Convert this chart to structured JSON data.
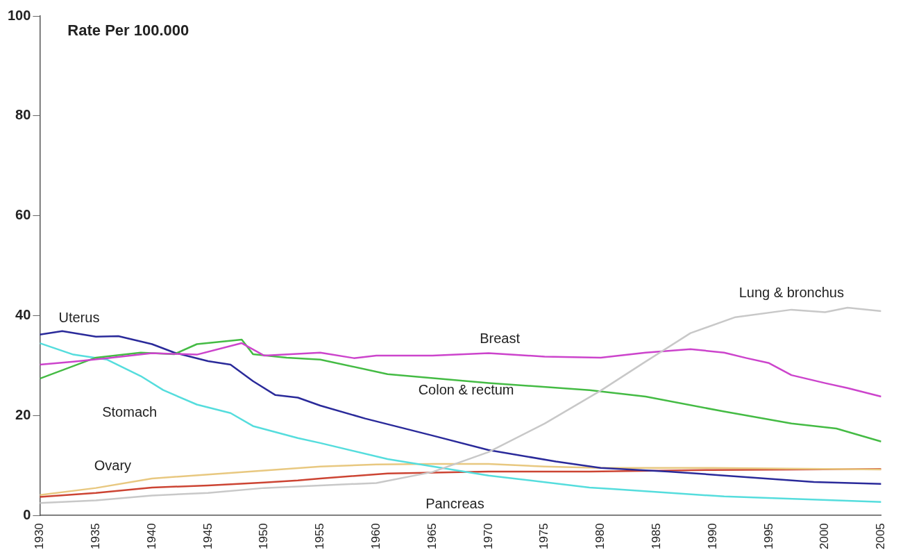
{
  "chart_data": {
    "type": "line",
    "ylabel": "Rate Per 100.000",
    "xlim": [
      1930,
      2005
    ],
    "xticks": [
      1930,
      1935,
      1940,
      1945,
      1950,
      1955,
      1960,
      1965,
      1970,
      1975,
      1980,
      1985,
      1990,
      1995,
      2000,
      2005
    ],
    "ylim": [
      0,
      100
    ],
    "yticks": [
      0,
      20,
      40,
      60,
      80,
      100
    ],
    "grid": false,
    "legend": false,
    "marker": "none",
    "line_style": "solid",
    "series": [
      {
        "name": "Lung & bronchus",
        "color": "#c8c8c8",
        "x": [
          1930,
          1935,
          1940,
          1945,
          1950,
          1955,
          1960,
          1965,
          1970,
          1975,
          1980,
          1984,
          1988,
          1992,
          1997,
          2000,
          2002,
          2005
        ],
        "values": [
          2.5,
          3,
          4,
          4.5,
          5.5,
          6,
          6.5,
          8.7,
          12.7,
          18.4,
          25,
          30.8,
          36.5,
          39.7,
          41.2,
          40.7,
          41.6,
          40.9
        ]
      },
      {
        "name": "Breast",
        "color": "#cc44cc",
        "x": [
          1930,
          1933,
          1936,
          1940,
          1944,
          1948,
          1950,
          1955,
          1958,
          1960,
          1965,
          1970,
          1975,
          1980,
          1984,
          1988,
          1991,
          1993,
          1995,
          1997,
          2000,
          2002,
          2005
        ],
        "values": [
          30.2,
          30.8,
          31.5,
          32.5,
          32.2,
          34.5,
          32,
          32.6,
          31.5,
          32,
          32,
          32.5,
          31.8,
          31.6,
          32.6,
          33.3,
          32.6,
          31.5,
          30.5,
          28.1,
          26.5,
          25.5,
          23.8
        ]
      },
      {
        "name": "Colon & rectum",
        "color": "#44bb44",
        "x": [
          1930,
          1935,
          1939,
          1942,
          1944,
          1948,
          1949,
          1952,
          1955,
          1961,
          1970,
          1979,
          1984,
          1991,
          1997,
          2001,
          2005
        ],
        "values": [
          27.4,
          31.6,
          32.6,
          32.3,
          34.3,
          35.2,
          32.3,
          31.6,
          31.2,
          28.3,
          26.5,
          25.1,
          23.8,
          20.8,
          18.4,
          17.4,
          14.8
        ]
      },
      {
        "name": "Uterus",
        "color": "#2a2a9a",
        "x": [
          1930,
          1932,
          1935,
          1937,
          1940,
          1942,
          1945,
          1947,
          1949,
          1951,
          1953,
          1955,
          1959,
          1965,
          1970,
          1976,
          1980,
          1986,
          1991,
          1999,
          2005
        ],
        "values": [
          36.2,
          36.9,
          35.8,
          35.9,
          34.3,
          32.6,
          30.9,
          30.2,
          26.9,
          24.1,
          23.6,
          22,
          19.4,
          16,
          13.1,
          10.8,
          9.5,
          8.8,
          8,
          6.7,
          6.3
        ]
      },
      {
        "name": "Stomach",
        "color": "#55dddd",
        "x": [
          1930,
          1933,
          1936,
          1939,
          1941,
          1944,
          1947,
          1949,
          1953,
          1955,
          1961,
          1970,
          1979,
          1981,
          1991,
          2005
        ],
        "values": [
          34.5,
          32.2,
          31.2,
          27.9,
          25.1,
          22.2,
          20.5,
          17.9,
          15.5,
          14.5,
          11.3,
          8,
          5.6,
          5.3,
          3.8,
          2.7
        ]
      },
      {
        "name": "Ovary",
        "color": "#e8c880",
        "x": [
          1930,
          1935,
          1940,
          1945,
          1950,
          1955,
          1960,
          1965,
          1970,
          1975,
          1980,
          1990,
          2005
        ],
        "values": [
          4.1,
          5.5,
          7.4,
          8.2,
          9,
          9.8,
          10.2,
          10.3,
          10.3,
          9.8,
          9.5,
          9.5,
          9.2
        ]
      },
      {
        "name": "Pancreas",
        "color": "#cc4433",
        "x": [
          1930,
          1935,
          1940,
          1945,
          1950,
          1953,
          1955,
          1961,
          1970,
          1979,
          1990,
          2005
        ],
        "values": [
          3.7,
          4.5,
          5.6,
          6,
          6.6,
          7,
          7.4,
          8.4,
          8.8,
          8.8,
          9.1,
          9.3
        ]
      }
    ]
  }
}
